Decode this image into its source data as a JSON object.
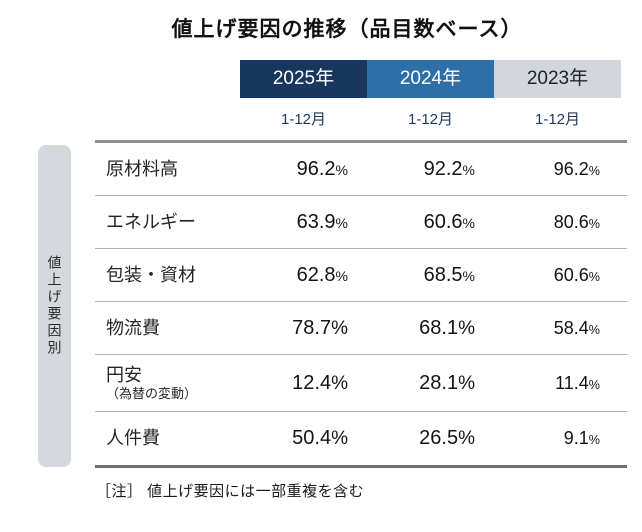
{
  "title": "値上げ要因の推移（品目数ベース）",
  "sidebar": {
    "label": "値上げ要因別"
  },
  "colors": {
    "header_2025": "#17375e",
    "header_2024": "#2f6fa8",
    "header_2023": "#d3d6db"
  },
  "table": {
    "percent_sign": "%",
    "columns": [
      {
        "year": "2025年",
        "period": "1-12月"
      },
      {
        "year": "2024年",
        "period": "1-12月"
      },
      {
        "year": "2023年",
        "period": "1-12月"
      }
    ],
    "rows": [
      {
        "label": "原材料高",
        "values": [
          "96.2",
          "92.2",
          "96.2"
        ]
      },
      {
        "label": "エネルギー",
        "values": [
          "63.9",
          "60.6",
          "80.6"
        ]
      },
      {
        "label": "包装・資材",
        "values": [
          "62.8",
          "68.5",
          "60.6"
        ]
      },
      {
        "label": "物流費",
        "values": [
          "78.7",
          "68.1",
          "58.4"
        ]
      },
      {
        "label": "円安",
        "sublabel": "（為替の変動）",
        "values": [
          "12.4",
          "28.1",
          "11.4"
        ]
      },
      {
        "label": "人件費",
        "values": [
          "50.4",
          "26.5",
          "9.1"
        ]
      }
    ]
  },
  "note": "［注］ 値上げ要因には一部重複を含む",
  "chart_data": {
    "type": "table",
    "title": "値上げ要因の推移（品目数ベース）",
    "categories": [
      "原材料高",
      "エネルギー",
      "包装・資材",
      "物流費",
      "円安（為替の変動）",
      "人件費"
    ],
    "series": [
      {
        "name": "2025年 1-12月",
        "values": [
          96.2,
          63.9,
          62.8,
          78.7,
          12.4,
          50.4
        ]
      },
      {
        "name": "2024年 1-12月",
        "values": [
          92.2,
          60.6,
          68.5,
          68.1,
          28.1,
          26.5
        ]
      },
      {
        "name": "2023年 1-12月",
        "values": [
          96.2,
          80.6,
          60.6,
          58.4,
          11.4,
          9.1
        ]
      }
    ],
    "unit": "%",
    "row_group_label": "値上げ要因別",
    "note": "値上げ要因には一部重複を含む"
  }
}
